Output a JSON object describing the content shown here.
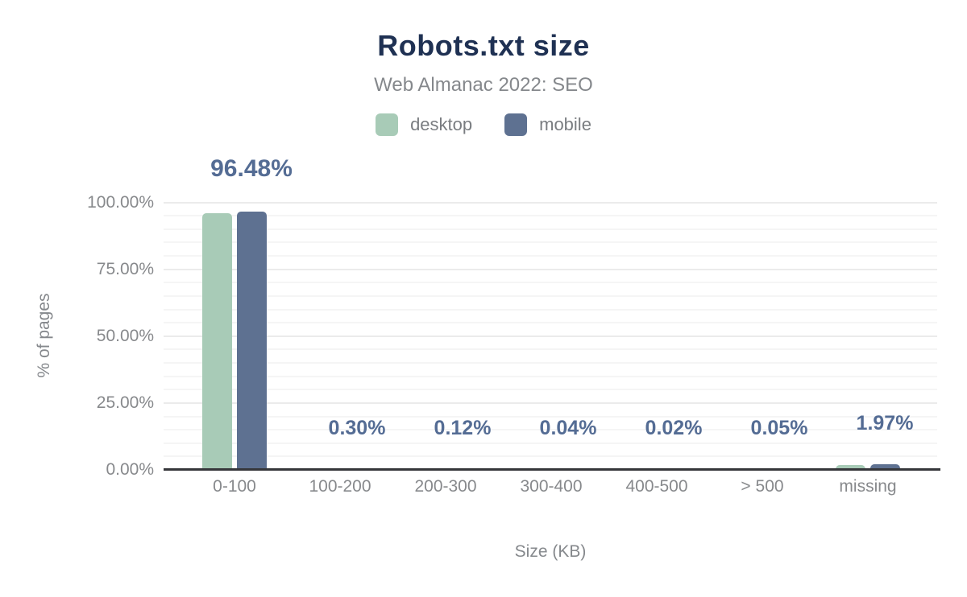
{
  "chart": {
    "title": "Robots.txt size",
    "subtitle": "Web Almanac 2022: SEO",
    "xlabel": "Size (KB)",
    "ylabel": "% of pages"
  },
  "legend": {
    "items": [
      {
        "label": "desktop",
        "color": "#a8cbb7"
      },
      {
        "label": "mobile",
        "color": "#5e7191"
      }
    ]
  },
  "colors": {
    "desktop_series": "#a8cbb7",
    "mobile_series": "#5e7191",
    "title_navy": "#1f3153",
    "data_label_slate": "#546c94",
    "axis_text_gray": "#87898c",
    "axis_line_dark": "#35363a"
  },
  "chart_data": {
    "type": "bar",
    "title": "Robots.txt size",
    "subtitle": "Web Almanac 2022: SEO",
    "categories": [
      "0-100",
      "100-200",
      "200-300",
      "300-400",
      "400-500",
      "> 500",
      "missing"
    ],
    "series": [
      {
        "name": "desktop",
        "color": "#a8cbb7",
        "values": [
          95.8,
          0.3,
          0.12,
          0.04,
          0.02,
          0.05,
          1.8
        ]
      },
      {
        "name": "mobile",
        "color": "#5e7191",
        "values": [
          96.48,
          0.3,
          0.12,
          0.04,
          0.02,
          0.05,
          1.97
        ]
      }
    ],
    "data_labels": [
      "96.48%",
      "0.30%",
      "0.12%",
      "0.04%",
      "0.02%",
      "0.05%",
      "1.97%"
    ],
    "data_labels_series": "mobile",
    "xlabel": "Size (KB)",
    "ylabel": "% of pages",
    "ylim": [
      0,
      100
    ],
    "yticks": [
      "0.00%",
      "25.00%",
      "50.00%",
      "75.00%",
      "100.00%"
    ],
    "ytick_values": [
      0,
      25,
      50,
      75,
      100
    ],
    "grid": "horizontal; major every 25%, faint minor every 5%",
    "legend_position": "top-center"
  }
}
